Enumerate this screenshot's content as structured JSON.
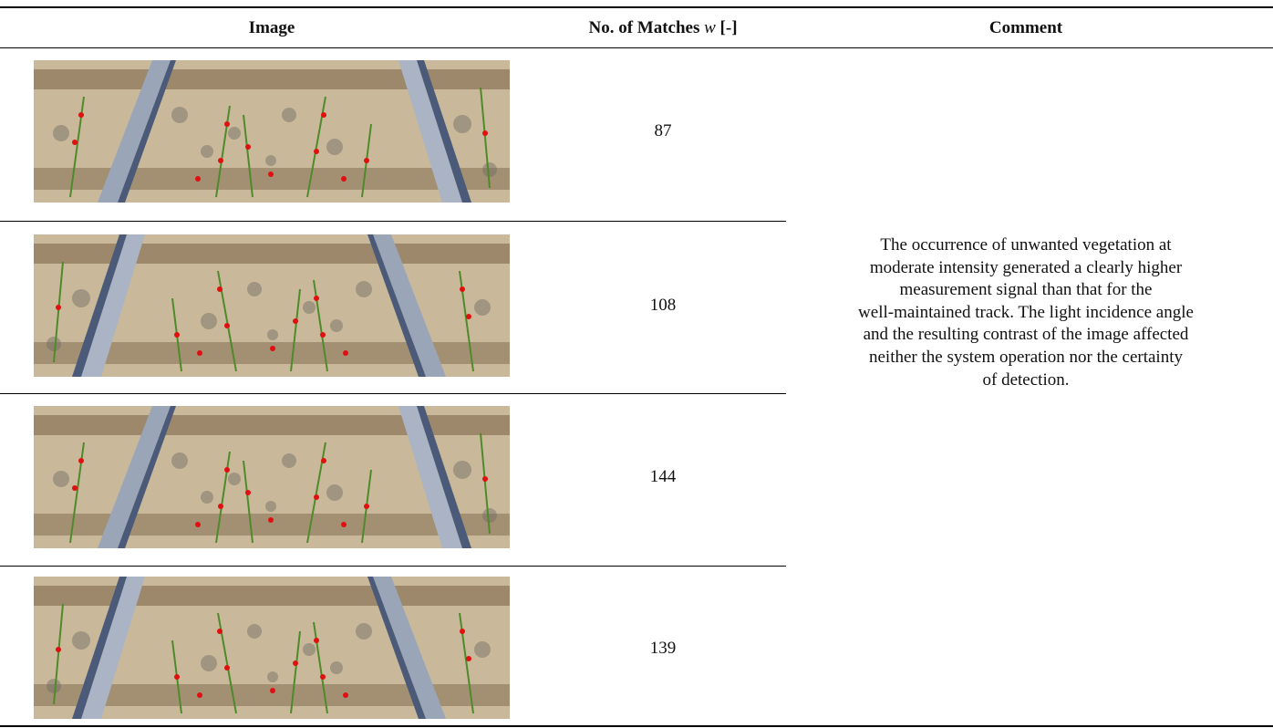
{
  "table": {
    "header": {
      "image": "Image",
      "matches": {
        "text_before": "No. of Matches",
        "symbol": "w",
        "text_after": "[-]"
      },
      "comment": "Comment"
    },
    "rows": [
      {
        "matches": 87
      },
      {
        "matches": 108
      },
      {
        "matches": 144
      },
      {
        "matches": 139
      }
    ],
    "comment_lines": [
      "The occurrence of unwanted vegetation at",
      "moderate intensity generated a clearly higher",
      "measurement signal than that for the",
      "well-maintained track. The light incidence angle",
      "and the resulting contrast of the image affected",
      "neither the system operation nor the certainty",
      "of detection."
    ]
  }
}
